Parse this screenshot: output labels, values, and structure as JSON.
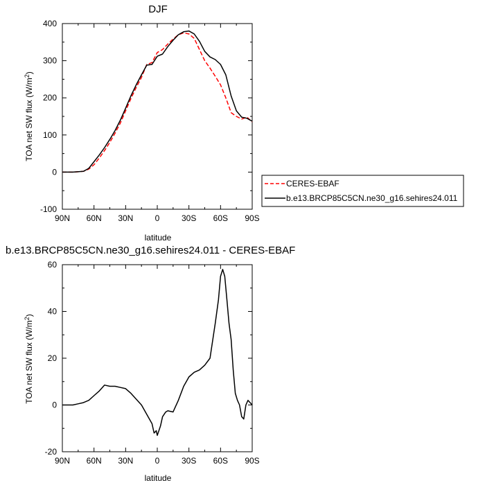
{
  "chart_data": [
    {
      "type": "line",
      "title": "DJF",
      "xlabel": "latitude",
      "ylabel": "TOA net SW flux (W/m²)",
      "xlim": [
        90,
        -90
      ],
      "ylim": [
        -100,
        400
      ],
      "xticks": [
        90,
        60,
        30,
        0,
        -30,
        -60,
        -90
      ],
      "xtick_labels": [
        "90N",
        "60N",
        "30N",
        "0",
        "30S",
        "60S",
        "90S"
      ],
      "yticks": [
        -100,
        0,
        100,
        200,
        300,
        400
      ],
      "ytick_labels": [
        "-100",
        "0",
        "100",
        "200",
        "300",
        "400"
      ],
      "legend_position": "right",
      "series": [
        {
          "name": "CERES-EBAF",
          "color": "#ff0000",
          "dash": "dashed",
          "x": [
            90,
            80,
            70,
            65,
            60,
            55,
            50,
            45,
            40,
            35,
            30,
            25,
            20,
            15,
            10,
            5,
            0,
            -5,
            -10,
            -15,
            -20,
            -25,
            -30,
            -35,
            -40,
            -45,
            -50,
            -55,
            -60,
            -65,
            -70,
            -75,
            -80,
            -85,
            -90
          ],
          "y": [
            0,
            0,
            2,
            8,
            20,
            38,
            58,
            80,
            105,
            132,
            165,
            198,
            228,
            255,
            290,
            295,
            322,
            330,
            345,
            358,
            370,
            375,
            372,
            360,
            330,
            300,
            280,
            258,
            235,
            200,
            160,
            150,
            143,
            148,
            135
          ]
        },
        {
          "name": "b.e13.BRCP85C5CN.ne30_g16.sehires24.011",
          "color": "#000000",
          "dash": "solid",
          "x": [
            90,
            80,
            70,
            65,
            60,
            55,
            50,
            45,
            40,
            35,
            30,
            25,
            20,
            15,
            10,
            5,
            0,
            -5,
            -10,
            -15,
            -20,
            -25,
            -30,
            -35,
            -40,
            -45,
            -50,
            -55,
            -60,
            -65,
            -70,
            -75,
            -80,
            -85,
            -90
          ],
          "y": [
            0,
            0,
            2,
            10,
            28,
            46,
            66,
            88,
            112,
            140,
            172,
            205,
            235,
            262,
            288,
            290,
            312,
            318,
            338,
            355,
            370,
            378,
            380,
            372,
            352,
            325,
            310,
            303,
            290,
            262,
            205,
            165,
            148,
            145,
            137
          ]
        }
      ]
    },
    {
      "type": "line",
      "title": "b.e13.BRCP85C5CN.ne30_g16.sehires24.011 - CERES-EBAF",
      "xlabel": "latitude",
      "ylabel": "TOA net SW flux (W/m²)",
      "xlim": [
        90,
        -90
      ],
      "ylim": [
        -20,
        60
      ],
      "xticks": [
        90,
        60,
        30,
        0,
        -30,
        -60,
        -90
      ],
      "xtick_labels": [
        "90N",
        "60N",
        "30N",
        "0",
        "30S",
        "60S",
        "90S"
      ],
      "yticks": [
        -20,
        0,
        20,
        40,
        60
      ],
      "ytick_labels": [
        "-20",
        "0",
        "20",
        "40",
        "60"
      ],
      "series": [
        {
          "color": "#000000",
          "dash": "solid",
          "x": [
            90,
            80,
            75,
            70,
            65,
            60,
            55,
            50,
            45,
            40,
            35,
            30,
            25,
            20,
            15,
            10,
            5,
            3,
            1,
            0,
            -3,
            -5,
            -8,
            -10,
            -15,
            -20,
            -25,
            -30,
            -35,
            -40,
            -45,
            -50,
            -55,
            -58,
            -60,
            -62,
            -64,
            -66,
            -68,
            -70,
            -72,
            -74,
            -76,
            -78,
            -80,
            -82,
            -84,
            -86,
            -88,
            -90
          ],
          "y": [
            0,
            0,
            0.5,
            1,
            2,
            4,
            6,
            8.5,
            8,
            8,
            7.5,
            7,
            5,
            2.5,
            0,
            -4,
            -8,
            -12,
            -11,
            -13,
            -9,
            -5,
            -3,
            -2.5,
            -3,
            2,
            8,
            12,
            14,
            15,
            17,
            20,
            35,
            45,
            55,
            58,
            55,
            45,
            35,
            28,
            15,
            5,
            2,
            0,
            -5,
            -6,
            0,
            2,
            1,
            0
          ]
        }
      ]
    }
  ]
}
